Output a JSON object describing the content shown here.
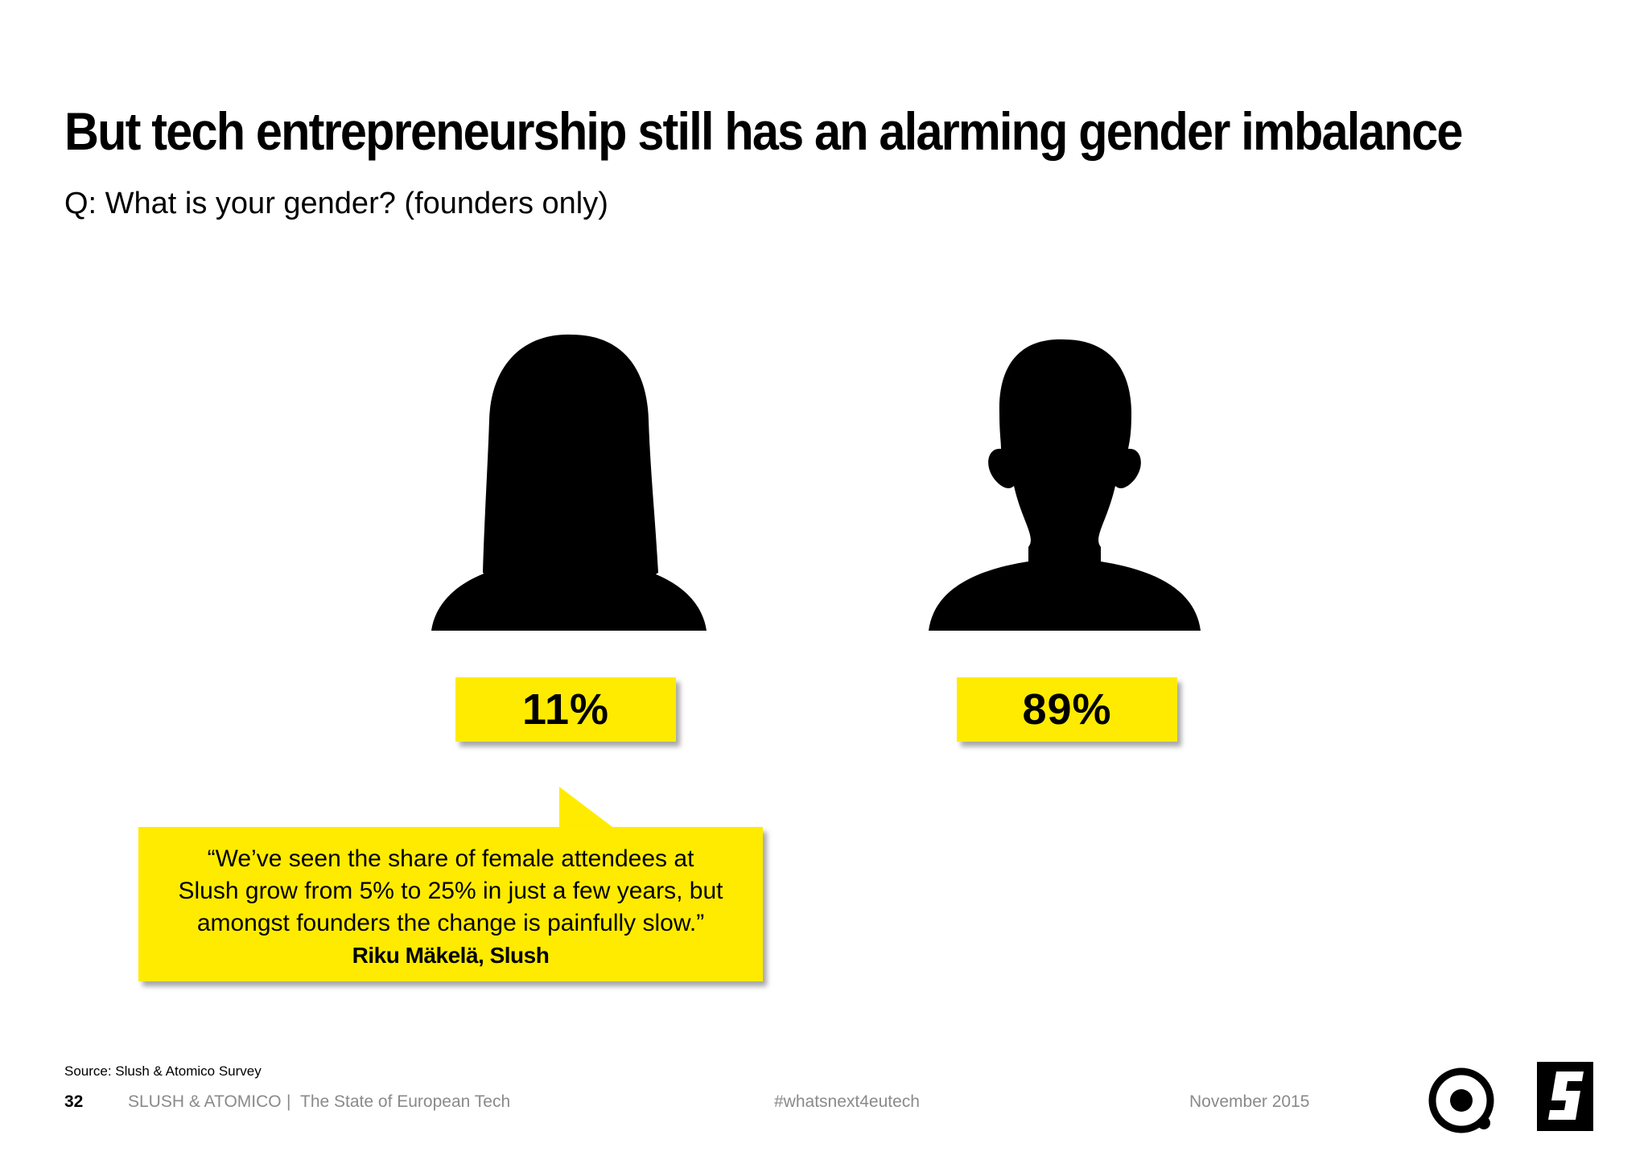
{
  "title": "But tech entrepreneurship still has an alarming gender imbalance",
  "subtitle": "Q: What is your gender? (founders only)",
  "groups": [
    {
      "icon": "female-silhouette-icon",
      "label": "11%"
    },
    {
      "icon": "male-silhouette-icon",
      "label": "89%"
    }
  ],
  "quote": {
    "lines": [
      "“We’ve seen the share of female attendees at",
      "Slush grow from 5% to 25% in just a few years, but",
      "amongst founders the change is painfully slow.”"
    ],
    "author": "Riku Mäkelä, Slush"
  },
  "source": "Source: Slush & Atomico Survey",
  "footer": {
    "page_number": "32",
    "brand": "SLUSH & ATOMICO",
    "separator": "|",
    "publication": "The State of European Tech",
    "hashtag": "#whatsnext4eutech",
    "date": "November 2015"
  },
  "colors": {
    "accent": "#ffeb00",
    "text": "#000000",
    "footer_text": "#8a8a8a"
  },
  "logos": [
    "atomico-logo-icon",
    "slush-logo-icon"
  ]
}
